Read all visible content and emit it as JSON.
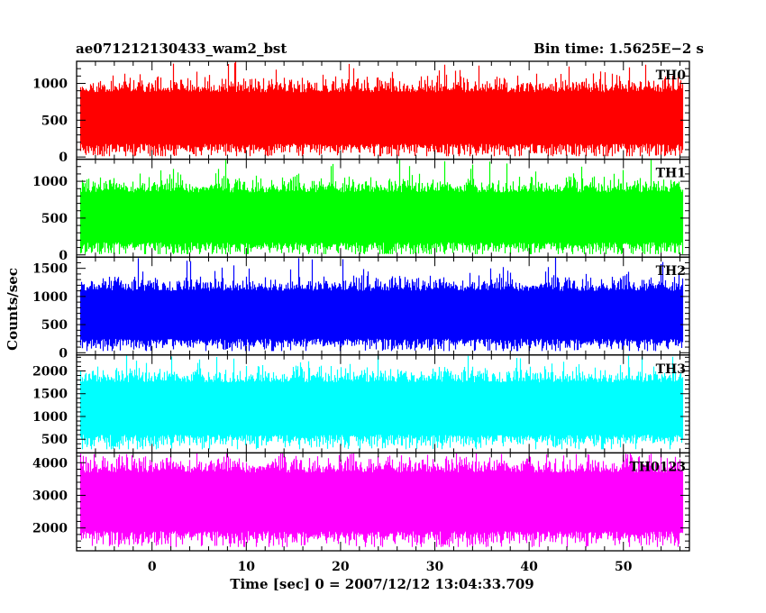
{
  "chart_data": {
    "type": "line",
    "title": "ae071212130433_wam2_bst",
    "subtitle": "Bin time: 1.5625E−2 s",
    "xlabel": "Time [sec] 0 = 2007/12/12 13:04:33.709",
    "ylabel": "Counts/sec",
    "xlim": [
      -8.0,
      57.0
    ],
    "xticks": [
      0,
      10,
      20,
      30,
      40,
      50
    ],
    "x_range_data": [
      -7.6,
      56.2
    ],
    "grid": false,
    "panels": [
      {
        "name": "TH0",
        "color": "#ff0000",
        "ylim": [
          -30,
          1300
        ],
        "yticks": [
          0,
          500,
          1000
        ],
        "baseline": 520,
        "typical_low": 180,
        "typical_high": 880,
        "min": 10,
        "max": 1300
      },
      {
        "name": "TH1",
        "color": "#00ff00",
        "ylim": [
          -30,
          1300
        ],
        "yticks": [
          0,
          500,
          1000
        ],
        "baseline": 500,
        "typical_low": 170,
        "typical_high": 850,
        "min": 10,
        "max": 1300
      },
      {
        "name": "TH2",
        "color": "#0000ff",
        "ylim": [
          -40,
          1700
        ],
        "yticks": [
          0,
          500,
          1000,
          1500
        ],
        "baseline": 660,
        "typical_low": 250,
        "typical_high": 1100,
        "min": 30,
        "max": 1700
      },
      {
        "name": "TH3",
        "color": "#00ffff",
        "ylim": [
          200,
          2350
        ],
        "yticks": [
          500,
          1000,
          1500,
          2000
        ],
        "baseline": 1200,
        "typical_low": 600,
        "typical_high": 1750,
        "min": 280,
        "max": 2350
      },
      {
        "name": "TH0123",
        "color": "#ff00ff",
        "ylim": [
          1300,
          4300
        ],
        "yticks": [
          2000,
          3000,
          4000
        ],
        "baseline": 2850,
        "typical_low": 1900,
        "typical_high": 3700,
        "min": 1420,
        "max": 4300
      }
    ]
  }
}
